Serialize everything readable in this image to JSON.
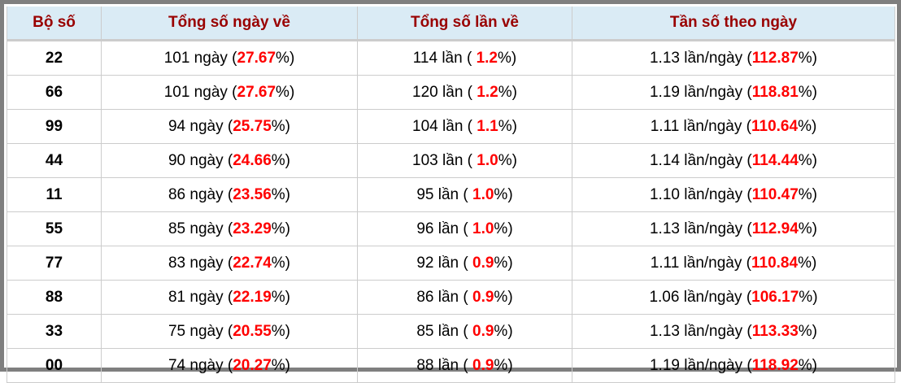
{
  "headers": [
    "Bộ số",
    "Tổng số ngày về",
    "Tổng số lần về",
    "Tần số theo ngày"
  ],
  "accent_color": "#ff0000",
  "header_color": "#990000",
  "rows": [
    {
      "bo_so": "22",
      "ngay": "101",
      "ngay_pct": "27.67",
      "lan": "114",
      "lan_pct": "1.2",
      "tan_so": "1.13",
      "tan_so_pct": "112.87"
    },
    {
      "bo_so": "66",
      "ngay": "101",
      "ngay_pct": "27.67",
      "lan": "120",
      "lan_pct": "1.2",
      "tan_so": "1.19",
      "tan_so_pct": "118.81"
    },
    {
      "bo_so": "99",
      "ngay": "94",
      "ngay_pct": "25.75",
      "lan": "104",
      "lan_pct": "1.1",
      "tan_so": "1.11",
      "tan_so_pct": "110.64"
    },
    {
      "bo_so": "44",
      "ngay": "90",
      "ngay_pct": "24.66",
      "lan": "103",
      "lan_pct": "1.0",
      "tan_so": "1.14",
      "tan_so_pct": "114.44"
    },
    {
      "bo_so": "11",
      "ngay": "86",
      "ngay_pct": "23.56",
      "lan": "95",
      "lan_pct": "1.0",
      "tan_so": "1.10",
      "tan_so_pct": "110.47"
    },
    {
      "bo_so": "55",
      "ngay": "85",
      "ngay_pct": "23.29",
      "lan": "96",
      "lan_pct": "1.0",
      "tan_so": "1.13",
      "tan_so_pct": "112.94"
    },
    {
      "bo_so": "77",
      "ngay": "83",
      "ngay_pct": "22.74",
      "lan": "92",
      "lan_pct": "0.9",
      "tan_so": "1.11",
      "tan_so_pct": "110.84"
    },
    {
      "bo_so": "88",
      "ngay": "81",
      "ngay_pct": "22.19",
      "lan": "86",
      "lan_pct": "0.9",
      "tan_so": "1.06",
      "tan_so_pct": "106.17"
    },
    {
      "bo_so": "33",
      "ngay": "75",
      "ngay_pct": "20.55",
      "lan": "85",
      "lan_pct": "0.9",
      "tan_so": "1.13",
      "tan_so_pct": "113.33"
    },
    {
      "bo_so": "00",
      "ngay": "74",
      "ngay_pct": "20.27",
      "lan": "88",
      "lan_pct": "0.9",
      "tan_so": "1.19",
      "tan_so_pct": "118.92"
    }
  ]
}
